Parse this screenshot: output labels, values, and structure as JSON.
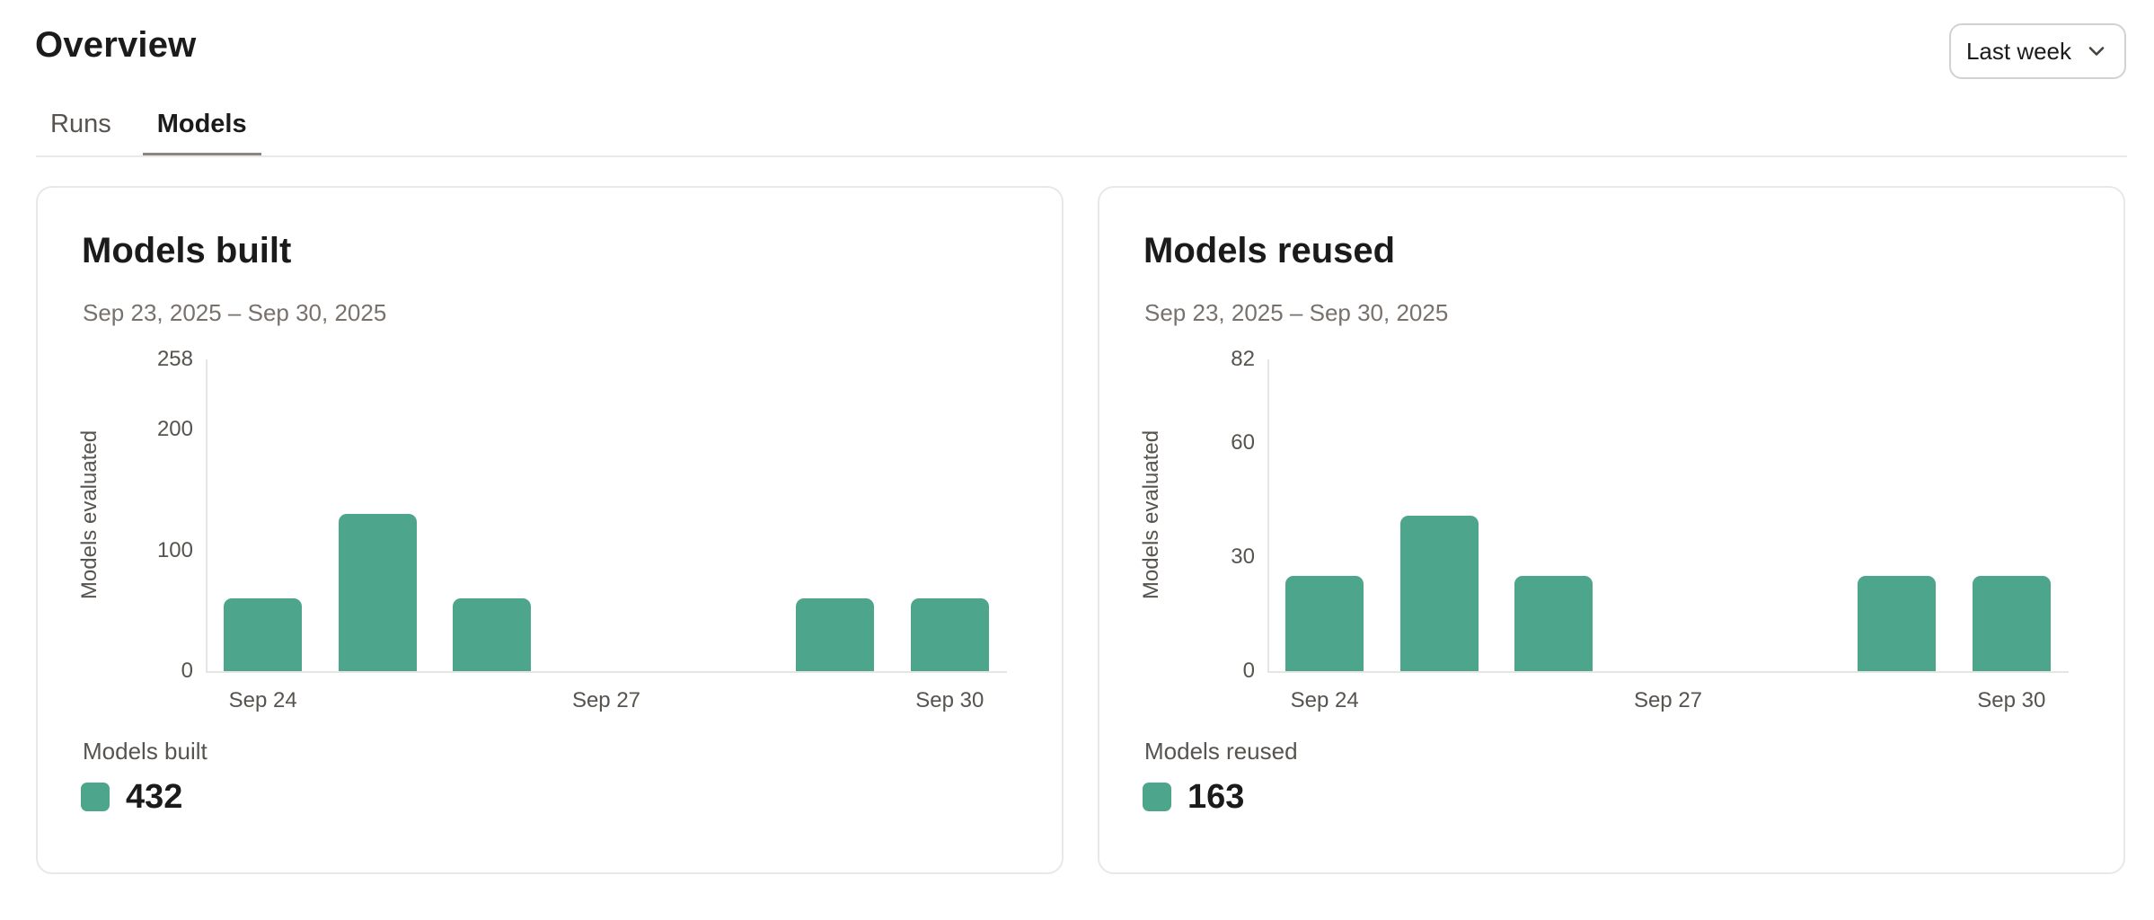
{
  "header": {
    "title": "Overview",
    "range_selector": {
      "label": "Last week"
    }
  },
  "tabs": [
    {
      "label": "Runs",
      "active": false
    },
    {
      "label": "Models",
      "active": true
    }
  ],
  "chart_data": [
    {
      "type": "bar",
      "title": "Models built",
      "subtitle": "Sep 23, 2025 – Sep 30, 2025",
      "ylabel": "Models evaluated",
      "categories": [
        "Sep 24",
        "Sep 25",
        "Sep 26",
        "Sep 27",
        "Sep 28",
        "Sep 29",
        "Sep 30"
      ],
      "values": [
        60,
        130,
        60,
        0,
        0,
        60,
        60
      ],
      "x_tick_labels": [
        "Sep 24",
        "",
        "",
        "Sep 27",
        "",
        "",
        "Sep 30"
      ],
      "yticks": [
        0,
        100,
        200,
        258
      ],
      "ylim": [
        0,
        258
      ],
      "grid": false,
      "legend_position": "bottom-left",
      "legend_label": "Models built",
      "total": "432",
      "bar_color": "#4DA68C"
    },
    {
      "type": "bar",
      "title": "Models reused",
      "subtitle": "Sep 23, 2025 – Sep 30, 2025",
      "ylabel": "Models evaluated",
      "categories": [
        "Sep 24",
        "Sep 25",
        "Sep 26",
        "Sep 27",
        "Sep 28",
        "Sep 29",
        "Sep 30"
      ],
      "values": [
        25,
        41,
        25,
        0,
        0,
        25,
        25
      ],
      "x_tick_labels": [
        "Sep 24",
        "",
        "",
        "Sep 27",
        "",
        "",
        "Sep 30"
      ],
      "yticks": [
        0,
        30,
        60,
        82
      ],
      "ylim": [
        0,
        82
      ],
      "grid": false,
      "legend_position": "bottom-left",
      "legend_label": "Models reused",
      "total": "163",
      "bar_color": "#4DA68C"
    }
  ]
}
